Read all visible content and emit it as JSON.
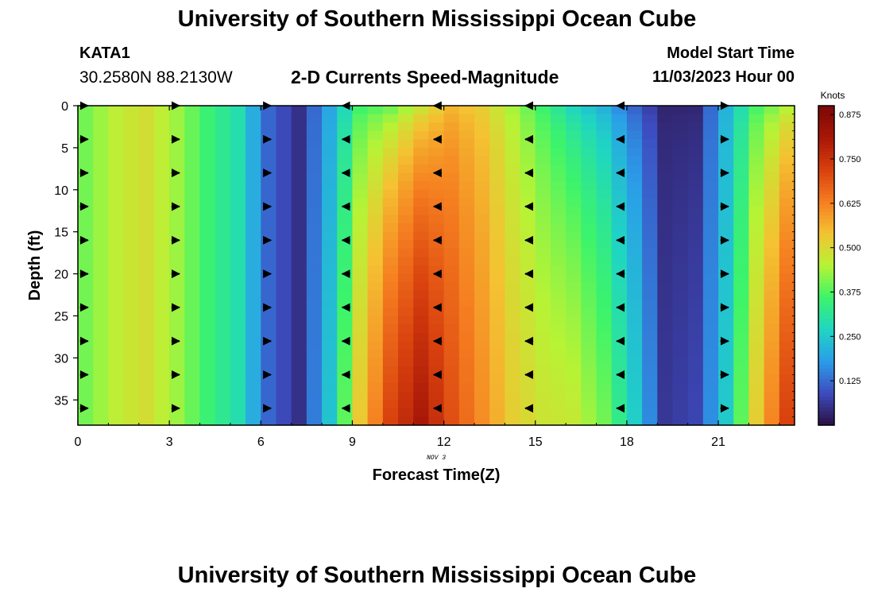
{
  "page": {
    "title": "University of Southern Mississippi Ocean Cube",
    "footer_title": "University of Southern Mississippi Ocean Cube",
    "station": "KATA1",
    "coords": "30.2580N  88.2130W",
    "subtitle": "2-D Currents Speed-Magnitude",
    "model_start_label": "Model Start Time",
    "model_start_value": "11/03/2023 Hour 00"
  },
  "chart_data": {
    "type": "heatmap",
    "title": "2-D Currents Speed-Magnitude",
    "xlabel": "Forecast Time(Z)",
    "ylabel": "Depth (ft)",
    "date_label": "NOV 3",
    "xlim": [
      0,
      23.5
    ],
    "ylim": [
      0,
      38
    ],
    "xticks": [
      0,
      3,
      6,
      9,
      12,
      15,
      18,
      21
    ],
    "yticks": [
      0,
      5,
      10,
      15,
      20,
      25,
      30,
      35
    ],
    "colorbar": {
      "label": "Knots",
      "min": 0,
      "max": 0.9,
      "ticks": [
        "0.125",
        "0.250",
        "0.375",
        "0.500",
        "0.625",
        "0.750",
        "0.875"
      ],
      "colors": [
        "#2b0f42",
        "#3d4cc0",
        "#2b9de9",
        "#1fd6c2",
        "#3df46a",
        "#b7f335",
        "#f4c232",
        "#f57d20",
        "#d8400e",
        "#a81707",
        "#7c0706"
      ]
    },
    "hours": [
      0,
      1,
      2,
      3,
      4,
      5,
      6,
      7,
      8,
      9,
      10,
      11,
      12,
      13,
      14,
      15,
      16,
      17,
      18,
      19,
      20,
      21,
      22,
      23
    ],
    "surface_speed": [
      0.4,
      0.46,
      0.49,
      0.43,
      0.35,
      0.29,
      0.12,
      0.05,
      0.19,
      0.34,
      0.36,
      0.44,
      0.54,
      0.51,
      0.43,
      0.34,
      0.25,
      0.19,
      0.1,
      0.03,
      0.03,
      0.21,
      0.35,
      0.42
    ],
    "bottom_speed": [
      0.4,
      0.46,
      0.49,
      0.43,
      0.35,
      0.29,
      0.12,
      0.05,
      0.24,
      0.53,
      0.72,
      0.81,
      0.7,
      0.61,
      0.52,
      0.48,
      0.47,
      0.4,
      0.26,
      0.06,
      0.08,
      0.25,
      0.52,
      0.72
    ],
    "direction": [
      "east",
      "east",
      "east",
      "east",
      "east",
      "east",
      "east",
      "east",
      "west",
      "west",
      "west",
      "west",
      "west",
      "west",
      "west",
      "west",
      "west",
      "west",
      "west",
      "west",
      "west",
      "east",
      "east",
      "east"
    ],
    "vector_hours": [
      0.2,
      3.2,
      6.2,
      8.8,
      11.8,
      14.8,
      17.8,
      21.2
    ],
    "vector_depths": [
      0,
      4,
      8,
      12,
      16,
      20,
      24,
      28,
      32,
      36
    ]
  }
}
